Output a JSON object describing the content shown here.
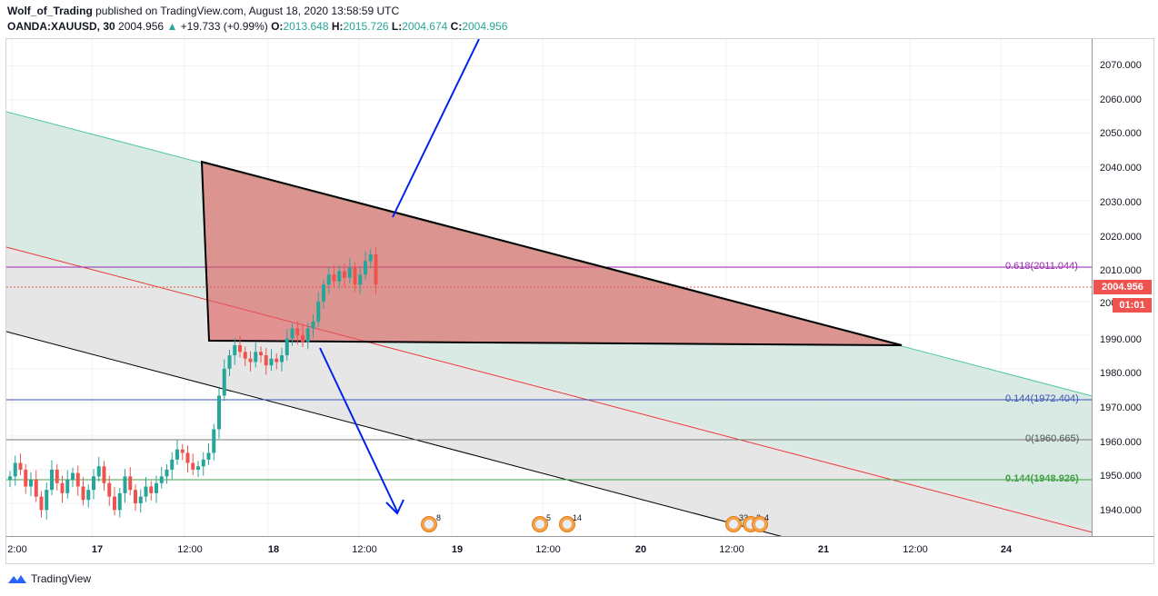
{
  "header": {
    "author": "Wolf_of_Trading",
    "published_text": "published on TradingView.com, August 18, 2020 13:58:59 UTC",
    "symbol": "OANDA:XAUUSD, 30",
    "last_price": "2004.956",
    "change_arrow": "▲",
    "change": "+19.733 (+0.99%)",
    "o_label": "O:",
    "o_value": "2013.648",
    "h_label": "H:",
    "h_value": "2015.726",
    "l_label": "L:",
    "l_value": "2004.674",
    "c_label": "C:",
    "c_value": "2004.956"
  },
  "price_axis": {
    "ticks": [
      "2070.000",
      "2060.000",
      "2050.000",
      "2040.000",
      "2030.000",
      "2020.000",
      "2010.000",
      "1990.000",
      "1980.000",
      "1970.000",
      "1960.000",
      "1950.000",
      "1940.000"
    ],
    "partial_tick": "200",
    "current_price_label": "2004.956",
    "countdown": "01:01"
  },
  "time_axis": {
    "ticks": [
      "2:00",
      "17",
      "12:00",
      "18",
      "12:00",
      "19",
      "12:00",
      "20",
      "12:00",
      "21",
      "12:00",
      "24"
    ]
  },
  "fib_levels": {
    "l618": "0.618(2011.044)",
    "l144a": "0.144(1972.404)",
    "l0": "0(1960.665)",
    "l144b": "0.144(1948.926)"
  },
  "events": [
    "8",
    "5",
    "14",
    "33",
    "2",
    "4"
  ],
  "footer": {
    "brand": "TradingView"
  },
  "colors": {
    "up": "#26a69a",
    "down": "#ef5350",
    "arrow": "#0022ee",
    "triangle": "#d9534f"
  },
  "chart_data": {
    "type": "candlestick",
    "symbol": "OANDA:XAUUSD",
    "interval": "30",
    "ylim": [
      1930,
      2078
    ],
    "x_ticks": [
      "2:00",
      "17",
      "12:00",
      "18",
      "12:00",
      "19",
      "12:00",
      "20",
      "12:00",
      "21",
      "12:00",
      "24"
    ],
    "last": 2004.956,
    "close_series": [
      1948,
      1952,
      1950,
      1945,
      1947,
      1942,
      1938,
      1944,
      1950,
      1946,
      1943,
      1947,
      1949,
      1945,
      1941,
      1944,
      1948,
      1951,
      1946,
      1942,
      1938,
      1943,
      1948,
      1944,
      1940,
      1942,
      1945,
      1943,
      1946,
      1948,
      1950,
      1953,
      1956,
      1955,
      1952,
      1950,
      1951,
      1953,
      1955,
      1962,
      1972,
      1980,
      1984,
      1987,
      1985,
      1983,
      1982,
      1985,
      1984,
      1981,
      1983,
      1982,
      1984,
      1989,
      1992,
      1990,
      1988,
      1992,
      1994,
      2000,
      2005,
      2008,
      2006,
      2009,
      2007,
      2010,
      2005,
      2008,
      2012,
      2014,
      2005
    ],
    "fib_levels": [
      {
        "label": "0.618",
        "value": 2011.044
      },
      {
        "label": "0.144",
        "value": 1972.404
      },
      {
        "label": "0",
        "value": 1960.665
      },
      {
        "label": "0.144",
        "value": 1948.926
      }
    ]
  }
}
